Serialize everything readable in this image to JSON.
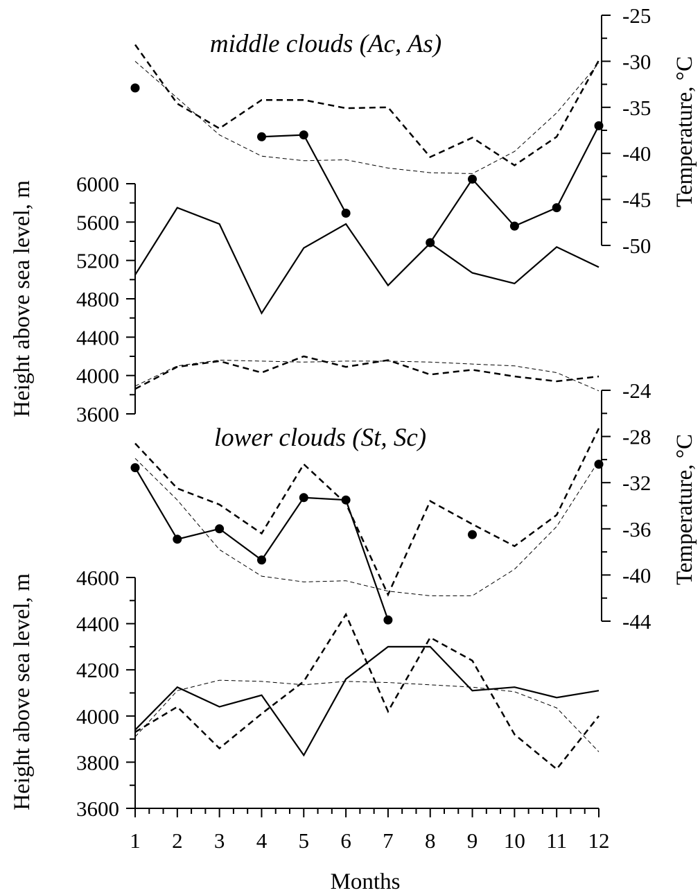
{
  "chart_data": [
    {
      "type": "line",
      "title": "middle clouds (Ac, As)",
      "x": [
        1,
        2,
        3,
        4,
        5,
        6,
        7,
        8,
        9,
        10,
        11,
        12
      ],
      "xlabel": "Months",
      "ylabel": "Height above sea level, m",
      "ylim": [
        3600,
        6000
      ],
      "yticks": [
        3600,
        4000,
        4400,
        4800,
        5200,
        5600,
        6000
      ],
      "y2label": "Temperature, °C",
      "y2lim": [
        -50,
        -25
      ],
      "y2ticks": [
        -50,
        -45,
        -40,
        -35,
        -30,
        -25
      ],
      "series": [
        {
          "axis": "left",
          "style": "solid",
          "values": [
            5050,
            5750,
            5580,
            4650,
            5330,
            5580,
            4940,
            5380,
            5070,
            4960,
            5340,
            5130
          ]
        },
        {
          "axis": "left",
          "style": "dashed",
          "values": [
            3860,
            4090,
            4150,
            4030,
            4200,
            4090,
            4160,
            4010,
            4060,
            3990,
            3940,
            3990
          ]
        },
        {
          "axis": "left",
          "style": "thin-dashed",
          "values": [
            3890,
            4100,
            4160,
            4150,
            4140,
            4150,
            4150,
            4140,
            4120,
            4100,
            4030,
            3840
          ]
        },
        {
          "axis": "right",
          "style": "solid-markers",
          "values": [
            -32.9,
            null,
            null,
            -38.2,
            -38,
            -46.5,
            null,
            -49.7,
            -42.8,
            -47.9,
            -45.9,
            -37
          ]
        },
        {
          "axis": "right",
          "style": "dashed",
          "values": [
            -28.2,
            -34.6,
            -37.3,
            -34.2,
            -34.2,
            -35.1,
            -35,
            -40.4,
            -38.3,
            -41.3,
            -38.2,
            -29.9
          ]
        },
        {
          "axis": "right",
          "style": "thin-dashed",
          "values": [
            -30,
            -34,
            -38,
            -40.3,
            -40.8,
            -40.7,
            -41.6,
            -42.1,
            -42.2,
            -39.8,
            -35.6,
            -30.2
          ]
        }
      ]
    },
    {
      "type": "line",
      "title": "lower clouds (St, Sc)",
      "x": [
        1,
        2,
        3,
        4,
        5,
        6,
        7,
        8,
        9,
        10,
        11,
        12
      ],
      "xlabel": "Months",
      "ylabel": "Height above sea level, m",
      "ylim": [
        3600,
        4600
      ],
      "yticks": [
        3600,
        3800,
        4000,
        4200,
        4400,
        4600
      ],
      "y2label": "Temperature, °C",
      "y2lim": [
        -44,
        -24
      ],
      "y2ticks": [
        -44,
        -40,
        -36,
        -32,
        -28,
        -24
      ],
      "xticks": [
        1,
        2,
        3,
        4,
        5,
        6,
        7,
        8,
        9,
        10,
        11,
        12
      ],
      "series": [
        {
          "axis": "left",
          "style": "solid",
          "values": [
            3940,
            4125,
            4040,
            4090,
            3830,
            4160,
            4300,
            4300,
            4110,
            4125,
            4080,
            4110
          ]
        },
        {
          "axis": "left",
          "style": "dashed",
          "values": [
            3930,
            4040,
            3860,
            4010,
            4150,
            4440,
            4020,
            4340,
            4240,
            3920,
            3770,
            4000
          ]
        },
        {
          "axis": "left",
          "style": "thin-dashed",
          "values": [
            3910,
            4110,
            4155,
            4150,
            4135,
            4150,
            4145,
            4135,
            4125,
            4105,
            4035,
            3845
          ]
        },
        {
          "axis": "right",
          "style": "solid-markers",
          "values": [
            -30.7,
            -36.9,
            -36,
            -38.7,
            -33.3,
            -33.5,
            -43.9,
            null,
            -36.5,
            null,
            null,
            -30.4
          ]
        },
        {
          "axis": "right",
          "style": "dashed",
          "values": [
            -28.6,
            -32.5,
            -33.9,
            -36.4,
            -30.4,
            -33.8,
            -41.7,
            -33.6,
            -35.6,
            -37.5,
            -34.8,
            -27.3
          ]
        },
        {
          "axis": "right",
          "style": "thin-dashed",
          "values": [
            -29.9,
            -33.5,
            -37.8,
            -40.1,
            -40.6,
            -40.5,
            -41.4,
            -41.8,
            -41.8,
            -39.5,
            -35.8,
            -30.1
          ]
        }
      ]
    }
  ]
}
